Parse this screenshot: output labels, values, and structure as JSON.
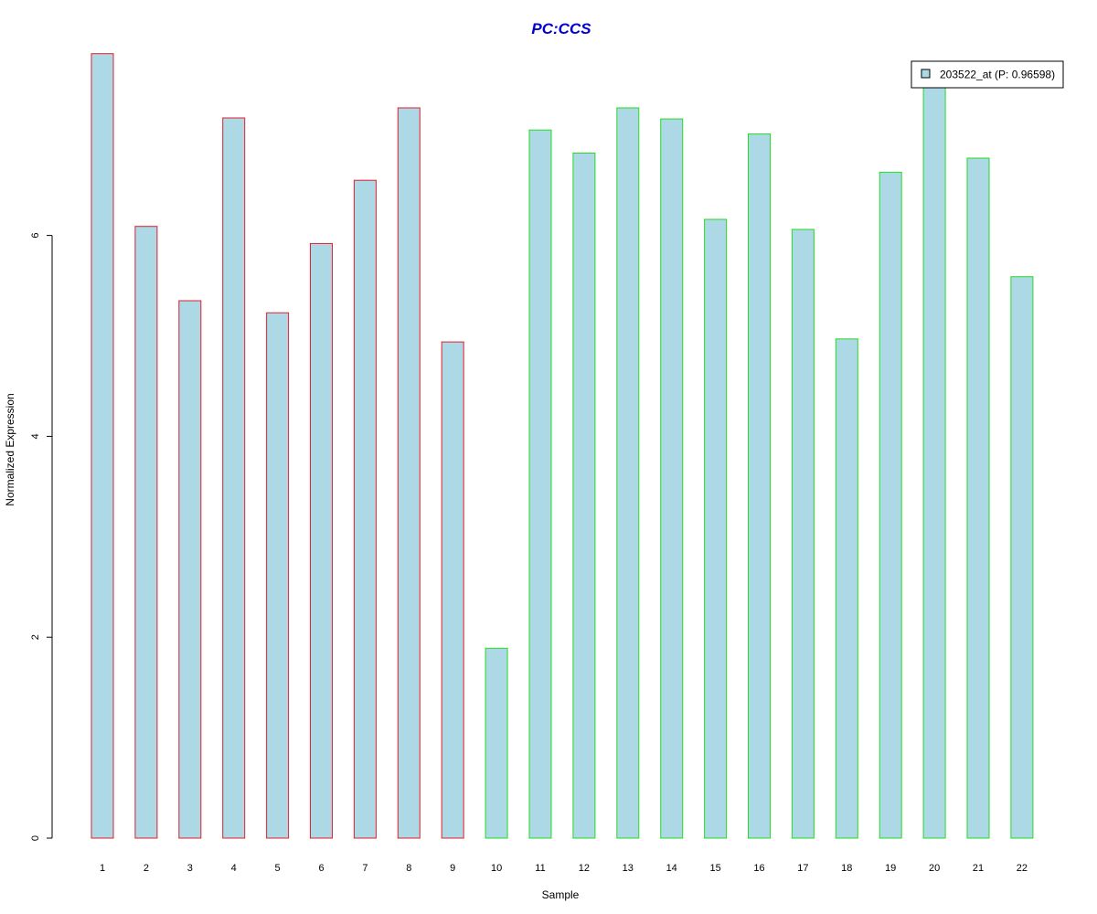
{
  "chart_data": {
    "type": "bar",
    "title": "PC:CCS",
    "xlabel": "Sample",
    "ylabel": "Normalized Expression",
    "categories": [
      "1",
      "2",
      "3",
      "4",
      "5",
      "6",
      "7",
      "8",
      "9",
      "10",
      "11",
      "12",
      "13",
      "14",
      "15",
      "16",
      "17",
      "18",
      "19",
      "20",
      "21",
      "22"
    ],
    "series": [
      {
        "name": "203522_at (P: 0.96598)",
        "values": [
          7.81,
          6.09,
          5.35,
          7.17,
          5.23,
          5.92,
          6.55,
          7.27,
          4.94,
          1.89,
          7.05,
          6.82,
          7.27,
          7.16,
          6.16,
          7.01,
          6.06,
          4.97,
          6.63,
          7.49,
          6.77,
          5.59
        ]
      }
    ],
    "groups": [
      {
        "samples": [
          1,
          9
        ],
        "border_color": "#e0202a"
      },
      {
        "samples": [
          10,
          22
        ],
        "border_color": "#22dd22"
      }
    ],
    "yticks": [
      0,
      2,
      4,
      6
    ],
    "ylim": [
      0,
      7.81
    ],
    "grid": false,
    "legend_position": "top-right",
    "colors": {
      "bar_fill": "#add8e6",
      "title": "#0000cc",
      "axis": "#000000"
    }
  }
}
